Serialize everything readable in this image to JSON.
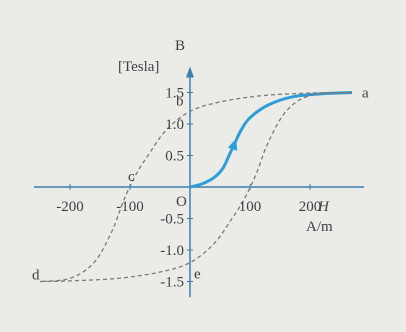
{
  "chart_data": {
    "type": "line",
    "title": "",
    "xlabel": {
      "symbol": "H",
      "unit": "A/m"
    },
    "ylabel": {
      "symbol": "B",
      "unit": "[Tesla]"
    },
    "xlim": [
      -260,
      290
    ],
    "ylim": [
      -1.75,
      1.85
    ],
    "x_ticks": [
      {
        "value": -200,
        "label": "-200"
      },
      {
        "value": -100,
        "label": "-100"
      },
      {
        "value": 100,
        "label": "100"
      },
      {
        "value": 200,
        "label": "200"
      }
    ],
    "y_ticks": [
      {
        "value": 1.5,
        "label": "1.5"
      },
      {
        "value": 1.0,
        "label": "1.0"
      },
      {
        "value": 0.5,
        "label": "0.5"
      },
      {
        "value": -0.5,
        "label": "-0.5"
      },
      {
        "value": -1.0,
        "label": "-1.0"
      },
      {
        "value": -1.5,
        "label": "-1.5"
      }
    ],
    "origin_label": "O",
    "grid": false,
    "series": [
      {
        "style": "solid",
        "color": "#2e9ed6",
        "x": [
          0,
          20,
          40,
          55,
          65,
          75,
          85,
          100,
          130,
          170,
          220,
          270
        ],
        "y": [
          0,
          0.05,
          0.15,
          0.3,
          0.5,
          0.7,
          0.9,
          1.1,
          1.3,
          1.43,
          1.48,
          1.5
        ]
      },
      {
        "style": "dashed",
        "color": "#7a7a7a",
        "x": [
          270,
          200,
          120,
          50,
          0,
          -40,
          -70,
          -90,
          -110,
          -130,
          -160,
          -200,
          -250
        ],
        "y": [
          1.5,
          1.49,
          1.45,
          1.35,
          1.2,
          0.9,
          0.5,
          0.2,
          -0.2,
          -0.7,
          -1.2,
          -1.45,
          -1.5
        ]
      },
      {
        "style": "dashed",
        "color": "#7a7a7a",
        "x": [
          -250,
          -200,
          -120,
          -50,
          0,
          40,
          70,
          90,
          110,
          130,
          160,
          200,
          270
        ],
        "y": [
          -1.5,
          -1.49,
          -1.45,
          -1.35,
          -1.2,
          -0.9,
          -0.5,
          -0.2,
          0.2,
          0.7,
          1.2,
          1.45,
          1.5
        ]
      }
    ],
    "annotations": [
      {
        "label": "a",
        "x": 270,
        "y": 1.5
      },
      {
        "label": "b",
        "x": 0,
        "y": 1.2
      },
      {
        "label": "c",
        "x": -90,
        "y": 0
      },
      {
        "label": "d",
        "x": -250,
        "y": -1.5
      },
      {
        "label": "e",
        "x": 0,
        "y": -1.2
      }
    ]
  }
}
